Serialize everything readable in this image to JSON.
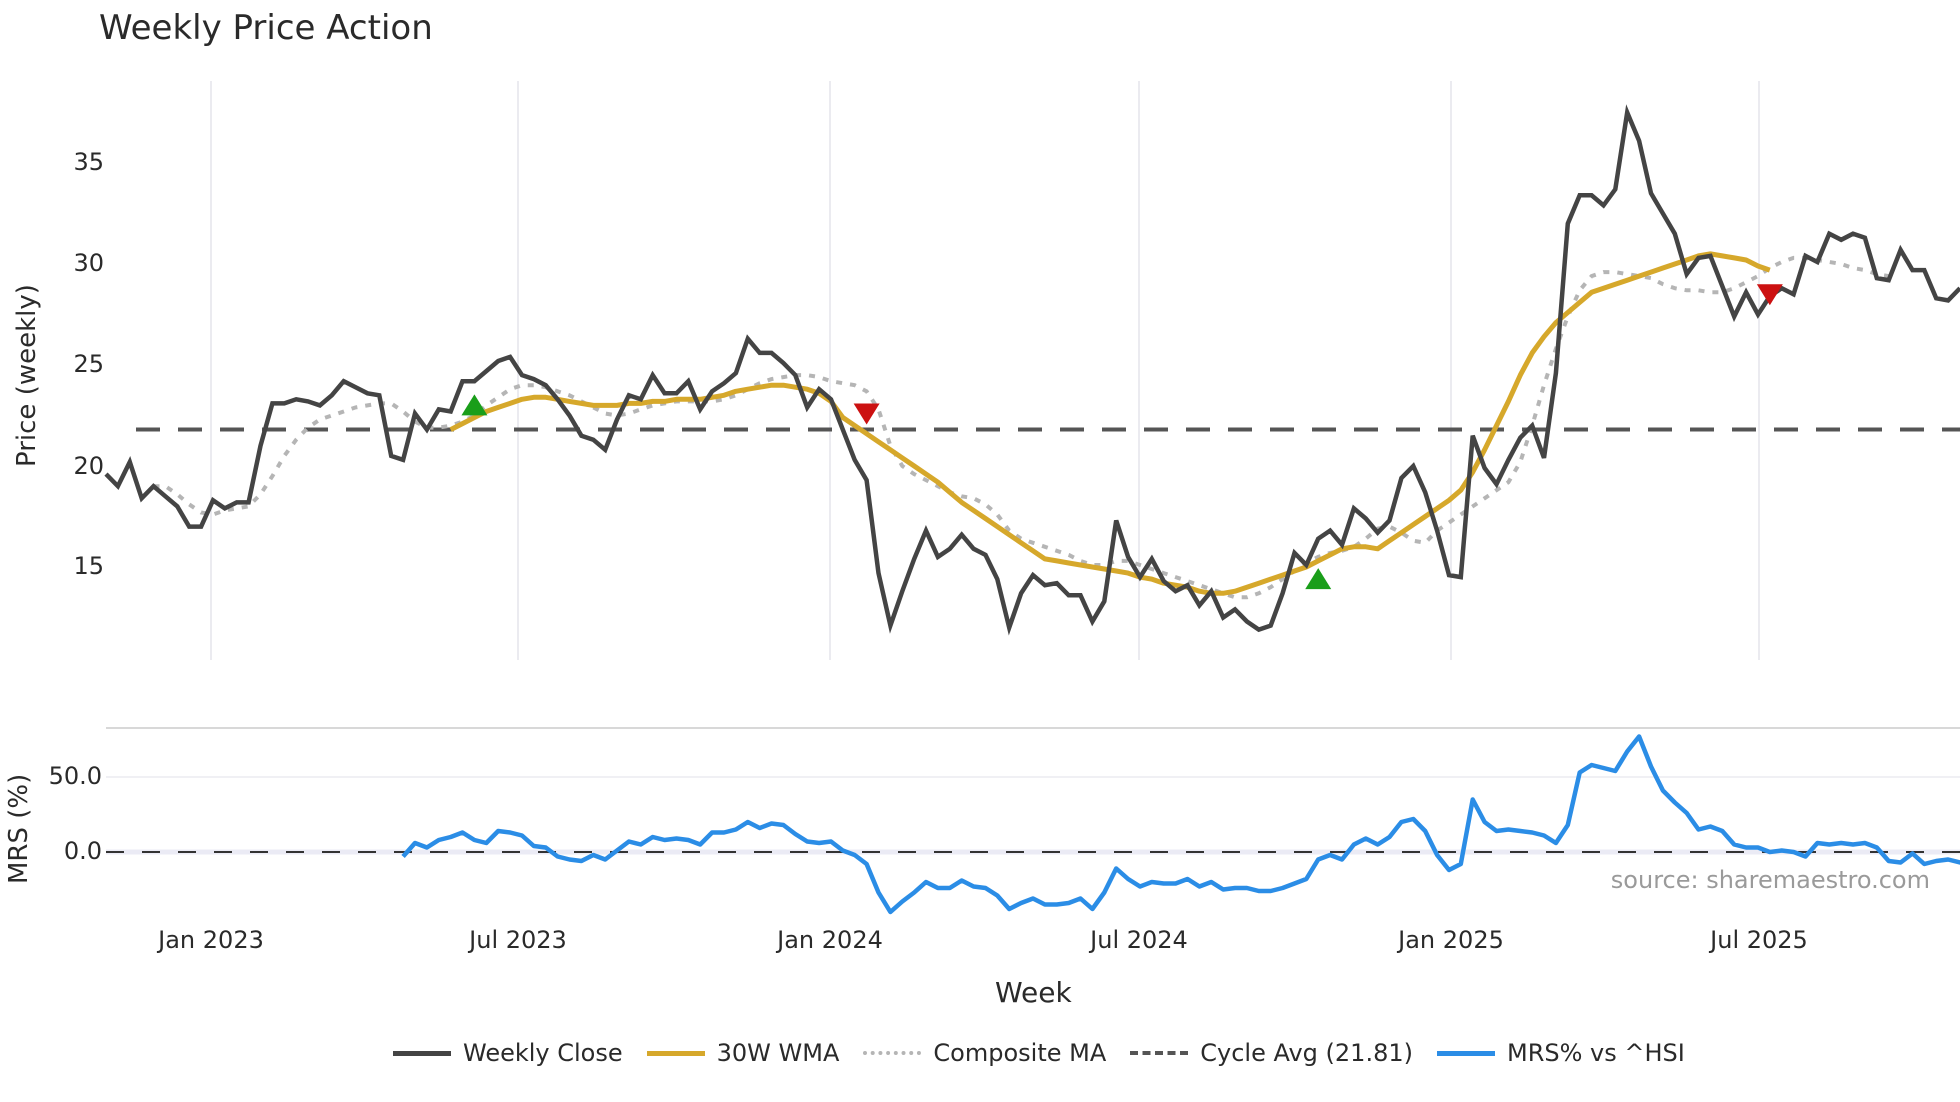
{
  "title": "Weekly Price Action",
  "source": "source: sharemaestro.com",
  "price_panel": {
    "ylabel": "Price (weekly)",
    "yticks": [
      "15",
      "20",
      "25",
      "30",
      "35"
    ]
  },
  "mrs_panel": {
    "ylabel": "MRS (%)",
    "yticks": [
      "0.0",
      "50.0"
    ]
  },
  "xaxis": {
    "label": "Week",
    "ticks": [
      "Jan 2023",
      "Jul 2023",
      "Jan 2024",
      "Jul 2024",
      "Jan 2025",
      "Jul 2025"
    ]
  },
  "legend": [
    {
      "label": "Weekly Close",
      "style": "solid-dark"
    },
    {
      "label": "30W WMA",
      "style": "solid-gold"
    },
    {
      "label": "Composite MA",
      "style": "dotted-gray"
    },
    {
      "label": "Cycle Avg (21.81)",
      "style": "dashed-dark"
    },
    {
      "label": "MRS% vs ^HSI",
      "style": "solid-blue"
    }
  ],
  "colors": {
    "close": "#444444",
    "wma": "#d6a82b",
    "composite": "#b5b5b5",
    "cycle": "#555555",
    "mrs": "#2b8de6",
    "buy_marker": "#1a9e1a",
    "sell_marker": "#cc1111",
    "grid": "#ebebf0"
  },
  "chart_data": [
    {
      "type": "line",
      "title": "Weekly Price Action",
      "xlabel": "Week",
      "ylabel": "Price (weekly)",
      "ylim": [
        10.3,
        38.8
      ],
      "x_range": [
        "Nov 2022",
        "Oct 2025"
      ],
      "x_ticks": [
        "Jan 2023",
        "Jul 2023",
        "Jan 2024",
        "Jul 2024",
        "Jan 2025",
        "Jul 2025"
      ],
      "y_ticks": [
        15,
        20,
        25,
        30,
        35
      ],
      "grid": "vertical only",
      "legend_position": "bottom",
      "series": [
        {
          "name": "Weekly Close",
          "start_index": 0,
          "values": [
            19.6,
            19.0,
            20.2,
            18.4,
            19.0,
            18.5,
            18.0,
            17.0,
            17.0,
            18.3,
            17.9,
            18.2,
            18.2,
            21.0,
            23.1,
            23.1,
            23.3,
            23.2,
            23.0,
            23.5,
            24.2,
            23.9,
            23.6,
            23.5,
            20.5,
            20.3,
            22.6,
            21.8,
            22.8,
            22.7,
            24.2,
            24.2,
            24.7,
            25.2,
            25.4,
            24.5,
            24.3,
            24.0,
            23.3,
            22.5,
            21.5,
            21.3,
            20.8,
            22.3,
            23.5,
            23.3,
            24.5,
            23.6,
            23.6,
            24.2,
            22.8,
            23.7,
            24.1,
            24.6,
            26.3,
            25.6,
            25.6,
            25.1,
            24.5,
            22.9,
            23.8,
            23.3,
            21.8,
            20.3,
            19.3,
            14.7,
            12.1,
            13.8,
            15.4,
            16.8,
            15.5,
            15.9,
            16.6,
            15.9,
            15.6,
            14.4,
            12.0,
            13.7,
            14.6,
            14.1,
            14.2,
            13.6,
            13.6,
            12.3,
            13.3,
            17.3,
            15.5,
            14.5,
            15.4,
            14.3,
            13.8,
            14.1,
            13.1,
            13.8,
            12.5,
            12.9,
            12.3,
            11.9,
            12.1,
            13.7,
            15.7,
            15.1,
            16.4,
            16.8,
            16.1,
            17.9,
            17.4,
            16.7,
            17.3,
            19.4,
            20.0,
            18.7,
            16.8,
            14.6,
            14.5,
            21.5,
            19.9,
            19.1,
            20.3,
            21.4,
            22.0,
            20.4,
            24.6,
            32.0,
            33.4,
            33.4,
            32.9,
            33.7,
            37.5,
            36.1,
            33.5,
            32.5,
            31.5,
            29.5,
            30.3,
            30.4,
            28.9,
            27.4,
            28.6,
            27.5,
            28.4,
            28.8,
            28.5,
            30.4,
            30.1,
            31.5,
            31.2,
            31.5,
            31.3,
            29.3,
            29.2,
            30.7,
            29.7,
            29.7,
            28.3,
            28.2,
            28.8
          ]
        },
        {
          "name": "30W WMA",
          "start_index": 29,
          "values": [
            21.8,
            22.1,
            22.4,
            22.7,
            22.9,
            23.1,
            23.3,
            23.4,
            23.4,
            23.3,
            23.2,
            23.1,
            23.0,
            23.0,
            23.0,
            23.1,
            23.1,
            23.2,
            23.2,
            23.3,
            23.3,
            23.3,
            23.4,
            23.5,
            23.7,
            23.8,
            23.9,
            24.0,
            24.0,
            23.9,
            23.8,
            23.6,
            23.2,
            22.4,
            22.0,
            21.6,
            21.2,
            20.8,
            20.4,
            20.0,
            19.6,
            19.2,
            18.7,
            18.2,
            17.8,
            17.4,
            17.0,
            16.6,
            16.2,
            15.8,
            15.4,
            15.3,
            15.2,
            15.1,
            15.0,
            14.9,
            14.8,
            14.7,
            14.5,
            14.4,
            14.2,
            14.1,
            14.0,
            13.8,
            13.7,
            13.7,
            13.8,
            14.0,
            14.2,
            14.4,
            14.6,
            14.8,
            15.0,
            15.3,
            15.6,
            15.9,
            16.0,
            16.0,
            15.9,
            16.3,
            16.7,
            17.1,
            17.5,
            17.9,
            18.3,
            18.8,
            19.7,
            20.8,
            22.0,
            23.2,
            24.5,
            25.6,
            26.4,
            27.1,
            27.6,
            28.1,
            28.6,
            28.8,
            29.0,
            29.2,
            29.4,
            29.6,
            29.8,
            30.0,
            30.2,
            30.4,
            30.5,
            30.4,
            30.3,
            30.2,
            29.9,
            29.7
          ]
        },
        {
          "name": "Composite MA",
          "start_index": 4,
          "values": [
            19.0,
            19.0,
            18.6,
            18.1,
            17.7,
            17.6,
            17.8,
            17.9,
            18.0,
            18.6,
            19.5,
            20.5,
            21.3,
            21.9,
            22.3,
            22.5,
            22.7,
            22.9,
            23.0,
            23.1,
            23.1,
            22.7,
            22.2,
            21.9,
            21.9,
            22.0,
            22.2,
            22.5,
            23.0,
            23.4,
            23.8,
            24.0,
            24.0,
            23.9,
            23.7,
            23.5,
            23.2,
            22.9,
            22.6,
            22.5,
            22.6,
            22.8,
            23.0,
            23.1,
            23.2,
            23.2,
            23.2,
            23.2,
            23.3,
            23.5,
            23.8,
            24.1,
            24.3,
            24.4,
            24.5,
            24.5,
            24.4,
            24.2,
            24.1,
            24.0,
            23.7,
            22.8,
            21.0,
            20.0,
            19.6,
            19.3,
            19.0,
            18.7,
            18.5,
            18.4,
            18.1,
            17.6,
            16.8,
            16.4,
            16.2,
            16.0,
            15.8,
            15.6,
            15.3,
            15.1,
            15.1,
            15.3,
            15.3,
            15.1,
            14.9,
            14.7,
            14.5,
            14.3,
            14.1,
            13.9,
            13.7,
            13.5,
            13.5,
            13.7,
            14.0,
            14.4,
            14.8,
            15.2,
            15.5,
            15.7,
            15.8,
            16.0,
            16.4,
            16.9,
            17.0,
            16.7,
            16.3,
            16.2,
            16.8,
            17.2,
            17.6,
            18.0,
            18.4,
            18.8,
            19.2,
            20.2,
            22.0,
            24.0,
            25.8,
            27.4,
            28.7,
            29.4,
            29.6,
            29.6,
            29.5,
            29.4,
            29.3,
            29.0,
            28.8,
            28.7,
            28.7,
            28.6,
            28.6,
            28.8,
            29.1,
            29.4,
            29.8,
            30.1,
            30.3,
            30.3,
            30.2,
            30.1,
            30.0,
            29.8,
            29.7,
            29.5,
            29.4
          ]
        },
        {
          "name": "Cycle Avg (21.81)",
          "constant": 21.81
        }
      ],
      "markers": [
        {
          "type": "buy",
          "shape": "triangle-up",
          "index": 31,
          "value": 23.0
        },
        {
          "type": "sell",
          "shape": "triangle-down",
          "index": 64,
          "value": 22.6
        },
        {
          "type": "buy",
          "shape": "triangle-up",
          "index": 102,
          "value": 14.4
        },
        {
          "type": "sell",
          "shape": "triangle-down",
          "index": 140,
          "value": 28.5
        }
      ]
    },
    {
      "type": "line",
      "ylabel": "MRS (%)",
      "ylim": [
        -48,
        83
      ],
      "y_ticks": [
        0.0,
        50.0
      ],
      "reference_line": 0.0,
      "series": [
        {
          "name": "MRS% vs ^HSI",
          "start_index": 25,
          "values": [
            -3,
            6,
            3,
            8,
            10,
            13,
            8,
            6,
            14,
            13,
            11,
            4,
            3,
            -3,
            -5,
            -6,
            -2,
            -5,
            1,
            7,
            5,
            10,
            8,
            9,
            8,
            5,
            13,
            13,
            15,
            20,
            16,
            19,
            18,
            12,
            7,
            6,
            7,
            1,
            -2,
            -8,
            -27,
            -40,
            -33,
            -27,
            -20,
            -24,
            -24,
            -19,
            -23,
            -24,
            -29,
            -38,
            -34,
            -31,
            -35,
            -35,
            -34,
            -31,
            -38,
            -27,
            -11,
            -18,
            -23,
            -20,
            -21,
            -21,
            -18,
            -23,
            -20,
            -25,
            -24,
            -24,
            -26,
            -26,
            -24,
            -21,
            -18,
            -5,
            -2,
            -5,
            5,
            9,
            5,
            10,
            20,
            22,
            14,
            -2,
            -12,
            -8,
            35,
            20,
            14,
            15,
            14,
            13,
            11,
            6,
            18,
            53,
            58,
            56,
            54,
            67,
            77,
            57,
            41,
            33,
            26,
            15,
            17,
            14,
            5,
            3,
            3,
            0,
            1,
            0,
            -3,
            6,
            5,
            6,
            5,
            6,
            3,
            -6,
            -7,
            -1,
            -8,
            -6,
            -5,
            -7,
            -6
          ]
        }
      ]
    }
  ]
}
